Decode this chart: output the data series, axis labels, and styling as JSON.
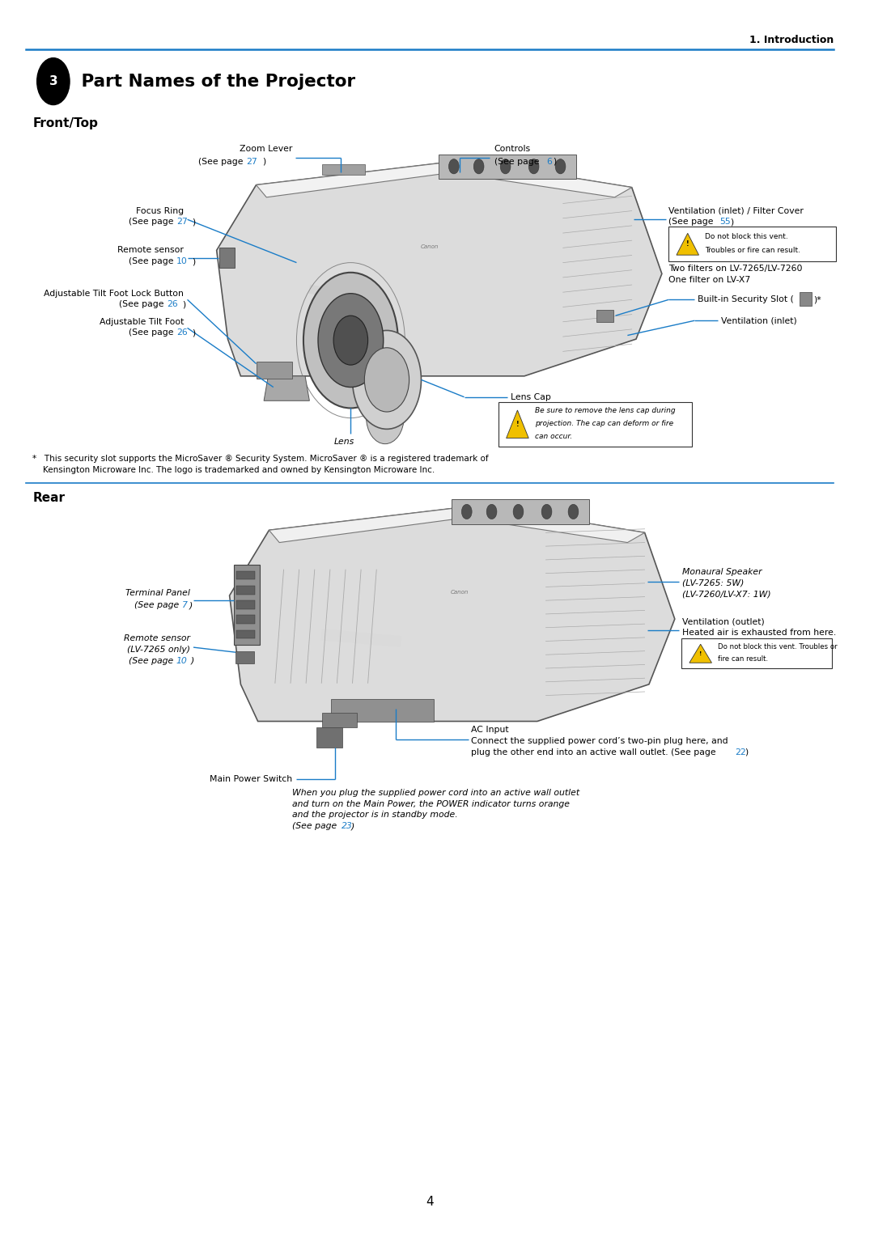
{
  "page_header": "1. Introduction",
  "section_num": "3",
  "section_title": " Part Names of the Projector",
  "subsection1": "Front/Top",
  "subsection2": "Rear",
  "page_num": "4",
  "ann_blue": "#1a7cc7",
  "blk": "#000000",
  "warn_yellow": "#f0c000",
  "footnote1": "*   This security slot supports the MicroSaver ® Security System. MicroSaver ® is a registered trademark of",
  "footnote2": "    Kensington Microware Inc. The logo is trademarked and owned by Kensington Microware Inc."
}
